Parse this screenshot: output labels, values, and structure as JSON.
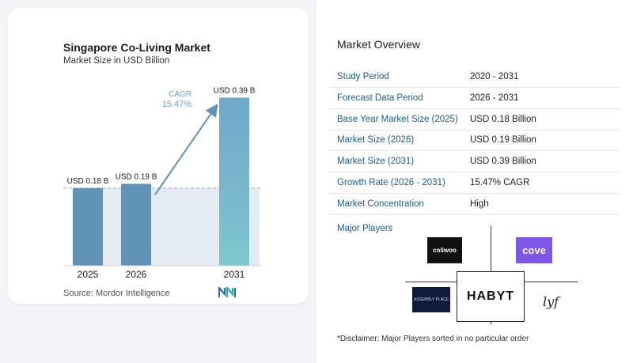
{
  "chart_data": {
    "type": "bar",
    "title": "Singapore Co-Living Market",
    "subtitle": "Market Size in USD Billion",
    "categories": [
      "2025",
      "2026",
      "2031"
    ],
    "values": [
      0.18,
      0.19,
      0.39
    ],
    "data_labels": [
      "USD 0.18 B",
      "USD 0.19 B",
      "USD 0.39 B"
    ],
    "cagr_label": "CAGR",
    "cagr_value": "15.47%",
    "ylim": [
      0,
      0.4
    ],
    "grid": false,
    "colors": {
      "bar_2025": "#5f93b8",
      "bar_2026": "#5f93b8",
      "bar_2031": "#6fa7c9",
      "bar_2031_bottom": "#7fc7cf",
      "baseline_fill": "#e4ecf3",
      "arrow": "#5d93b9",
      "cagr_text": "#6b9ec1"
    }
  },
  "source": "Source:  Mordor Intelligence",
  "source_logo_icon": "mordor-intelligence-logo-icon",
  "overview": {
    "title": "Market Overview",
    "rows": [
      {
        "label": "Study Period",
        "value": "2020 - 2031"
      },
      {
        "label": "Forecast Data Period",
        "value": "2026 - 2031"
      },
      {
        "label": "Base Year Market Size (2025)",
        "value": "USD 0.18 Billion"
      },
      {
        "label": "Market Size (2026)",
        "value": "USD 0.19 Billion"
      },
      {
        "label": "Market Size (2031)",
        "value": "USD 0.39 Billion"
      },
      {
        "label": "Growth Rate (2026 - 2031)",
        "value": "15.47% CAGR"
      },
      {
        "label": "Market Concentration",
        "value": "High"
      }
    ],
    "players_label": "Major Players",
    "players": {
      "coliwoo": "coliwoo",
      "cove": "cove",
      "assembly": "ASSEMBLY PLACE",
      "habyt": "HABYT",
      "lyf": "lyf"
    },
    "disclaimer": "*Disclaimer: Major Players sorted in no particular order"
  },
  "accent_color": "#1c5d8e"
}
